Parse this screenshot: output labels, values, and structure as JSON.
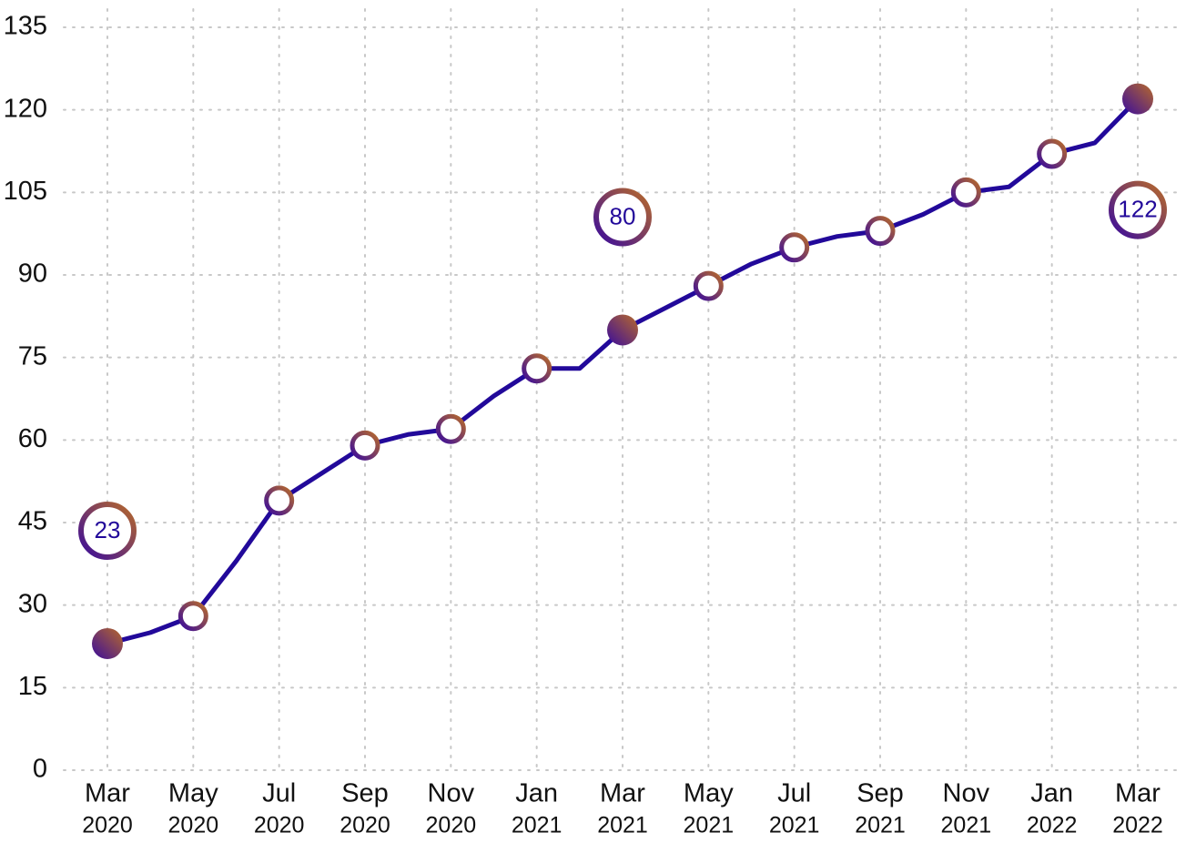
{
  "chart_data": {
    "type": "line",
    "x": [
      "2020-03",
      "2020-04",
      "2020-05",
      "2020-06",
      "2020-07",
      "2020-08",
      "2020-09",
      "2020-10",
      "2020-11",
      "2020-12",
      "2021-01",
      "2021-02",
      "2021-03",
      "2021-04",
      "2021-05",
      "2021-06",
      "2021-07",
      "2021-08",
      "2021-09",
      "2021-10",
      "2021-11",
      "2021-12",
      "2022-01",
      "2022-02",
      "2022-03"
    ],
    "values": [
      23,
      25,
      28,
      38,
      49,
      54,
      59,
      61,
      62,
      68,
      73,
      73,
      80,
      84,
      88,
      92,
      95,
      97,
      98,
      101,
      105,
      106,
      112,
      114,
      122
    ],
    "color": "#22099a",
    "ylim": [
      0,
      135
    ],
    "yticks": [
      0,
      15,
      30,
      45,
      60,
      75,
      90,
      105,
      120,
      135
    ],
    "xticks": [
      {
        "value": "2020-03",
        "label": [
          "Mar",
          "2020"
        ]
      },
      {
        "value": "2020-05",
        "label": [
          "May",
          "2020"
        ]
      },
      {
        "value": "2020-07",
        "label": [
          "Jul",
          "2020"
        ]
      },
      {
        "value": "2020-09",
        "label": [
          "Sep",
          "2020"
        ]
      },
      {
        "value": "2020-11",
        "label": [
          "Nov",
          "2020"
        ]
      },
      {
        "value": "2021-01",
        "label": [
          "Jan",
          "2021"
        ]
      },
      {
        "value": "2021-03",
        "label": [
          "Mar",
          "2021"
        ]
      },
      {
        "value": "2021-05",
        "label": [
          "May",
          "2021"
        ]
      },
      {
        "value": "2021-07",
        "label": [
          "Jul",
          "2021"
        ]
      },
      {
        "value": "2021-09",
        "label": [
          "Sep",
          "2021"
        ]
      },
      {
        "value": "2021-11",
        "label": [
          "Nov",
          "2021"
        ]
      },
      {
        "value": "2022-01",
        "label": [
          "Jan",
          "2022"
        ]
      },
      {
        "value": "2022-03",
        "label": [
          "Mar",
          "2022"
        ]
      }
    ],
    "annotated": [
      "2020-03",
      "2021-03",
      "2022-03"
    ],
    "grid": true
  }
}
